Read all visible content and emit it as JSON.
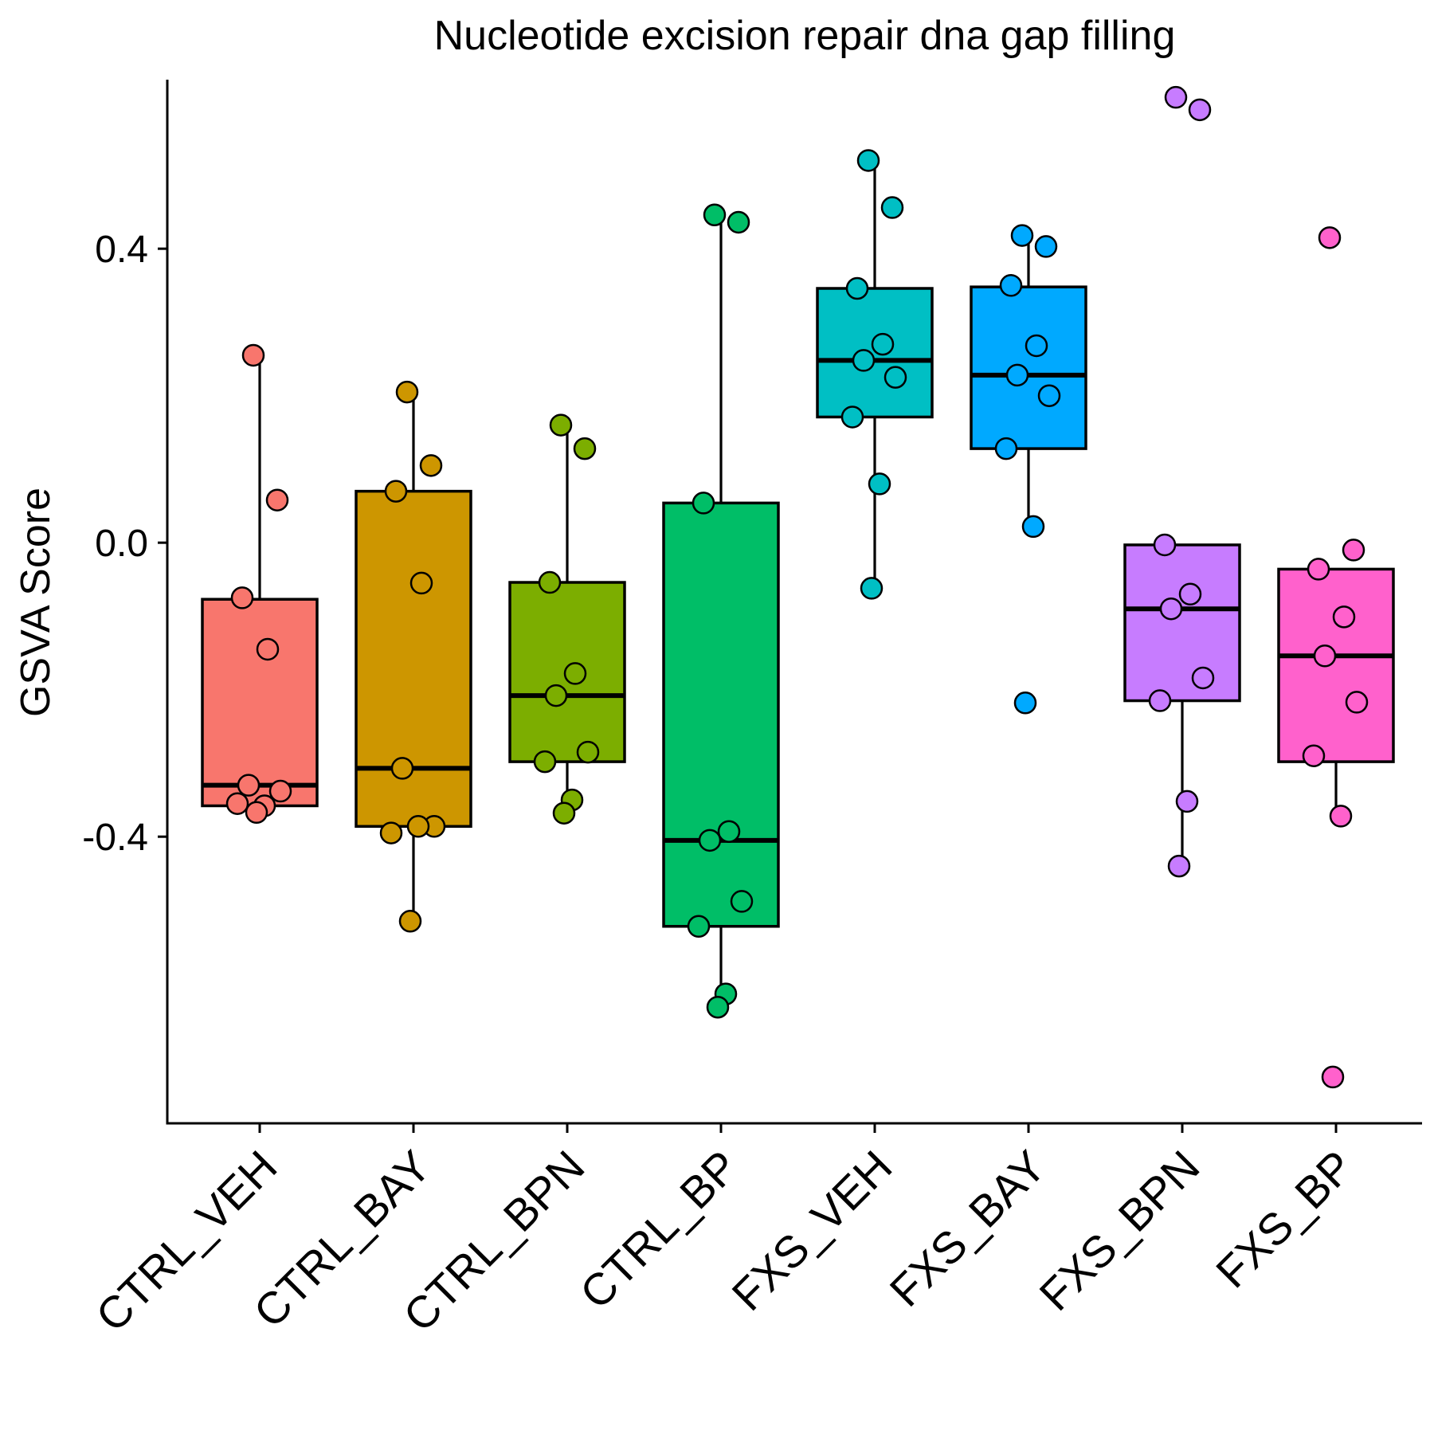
{
  "chart_data": {
    "type": "box",
    "title": "Nucleotide excision repair dna gap filling",
    "xlabel": "",
    "ylabel": "GSVA Score",
    "ylim": [
      -0.79,
      0.63
    ],
    "yticks": [
      "-0.4",
      "0.0",
      "0.4"
    ],
    "yticks_values": [
      -0.4,
      0.0,
      0.4
    ],
    "grid": false,
    "legend": "none",
    "categories": [
      "CTRL_VEH",
      "CTRL_BAY",
      "CTRL_BPN",
      "CTRL_BP",
      "FXS_VEH",
      "FXS_BAY",
      "FXS_BPN",
      "FXS_BP"
    ],
    "series": [
      {
        "category": "CTRL_VEH",
        "color": "#F8766D",
        "stats": {
          "whisker_low": -0.358,
          "q1": -0.358,
          "median": -0.33,
          "q3": -0.077,
          "whisker_high": 0.255
        },
        "points": [
          0.255,
          0.058,
          -0.075,
          -0.145,
          -0.33,
          -0.338,
          -0.355,
          -0.358,
          -0.367
        ]
      },
      {
        "category": "CTRL_BAY",
        "color": "#CD9600",
        "stats": {
          "whisker_low": -0.515,
          "q1": -0.386,
          "median": -0.307,
          "q3": 0.07,
          "whisker_high": 0.205
        },
        "points": [
          0.205,
          0.105,
          0.07,
          -0.055,
          -0.307,
          -0.386,
          -0.395,
          -0.386,
          -0.515
        ]
      },
      {
        "category": "CTRL_BPN",
        "color": "#7CAE00",
        "stats": {
          "whisker_low": -0.36,
          "q1": -0.298,
          "median": -0.208,
          "q3": -0.054,
          "whisker_high": 0.16
        },
        "points": [
          0.16,
          0.128,
          -0.054,
          -0.178,
          -0.208,
          -0.285,
          -0.298,
          -0.35,
          -0.368
        ]
      },
      {
        "category": "CTRL_BP",
        "color": "#00BE67",
        "stats": {
          "whisker_low": -0.632,
          "q1": -0.522,
          "median": -0.405,
          "q3": 0.054,
          "whisker_high": 0.436
        },
        "points": [
          0.446,
          0.436,
          0.054,
          -0.393,
          -0.405,
          -0.488,
          -0.522,
          -0.614,
          -0.632
        ]
      },
      {
        "category": "FXS_VEH",
        "color": "#00BFC4",
        "stats": {
          "whisker_low": -0.062,
          "q1": 0.171,
          "median": 0.248,
          "q3": 0.346,
          "whisker_high": 0.52
        },
        "points": [
          0.52,
          0.456,
          0.346,
          0.27,
          0.248,
          0.225,
          0.171,
          0.08,
          -0.062
        ]
      },
      {
        "category": "FXS_BAY",
        "color": "#00A9FF",
        "stats": {
          "whisker_low": 0.022,
          "q1": 0.128,
          "median": 0.228,
          "q3": 0.348,
          "whisker_high": 0.415
        },
        "points": [
          0.418,
          0.403,
          0.35,
          0.268,
          0.228,
          0.2,
          0.128,
          0.022,
          -0.218
        ]
      },
      {
        "category": "FXS_BPN",
        "color": "#C77CFF",
        "stats": {
          "whisker_low": -0.44,
          "q1": -0.215,
          "median": -0.09,
          "q3": -0.003,
          "whisker_high": -0.003
        },
        "points": [
          0.606,
          0.589,
          -0.003,
          -0.07,
          -0.09,
          -0.184,
          -0.215,
          -0.352,
          -0.44
        ]
      },
      {
        "category": "FXS_BP",
        "color": "#FF61CC",
        "stats": {
          "whisker_low": -0.372,
          "q1": -0.298,
          "median": -0.154,
          "q3": -0.036,
          "whisker_high": -0.036
        },
        "points": [
          0.415,
          -0.01,
          -0.036,
          -0.101,
          -0.154,
          -0.217,
          -0.29,
          -0.372,
          -0.727
        ]
      }
    ]
  }
}
